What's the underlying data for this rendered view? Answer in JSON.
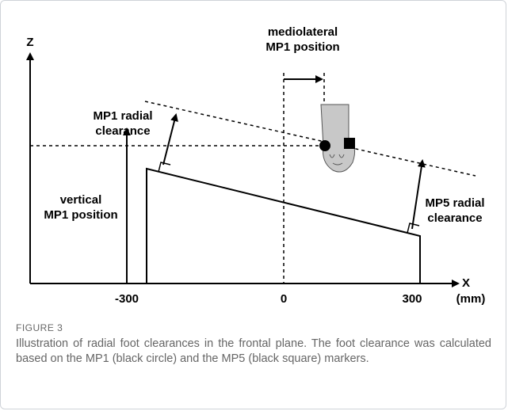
{
  "diagram": {
    "axes": {
      "z": "Z",
      "x": "X",
      "ticks": [
        "-300",
        "0",
        "300"
      ],
      "unit": "(mm)"
    },
    "annotations": {
      "mediolateral": [
        "mediolateral",
        "MP1 position"
      ],
      "mp1_radial": [
        "MP1 radial",
        "clearance"
      ],
      "vertical": [
        "vertical",
        "MP1 position"
      ],
      "mp5_radial": [
        "MP5 radial",
        "clearance"
      ]
    }
  },
  "caption": {
    "label": "FIGURE 3",
    "text": "Illustration of radial foot clearances in the frontal plane. The foot clearance was calculated based on the MP1 (black circle) and the MP5 (black square) markers."
  }
}
